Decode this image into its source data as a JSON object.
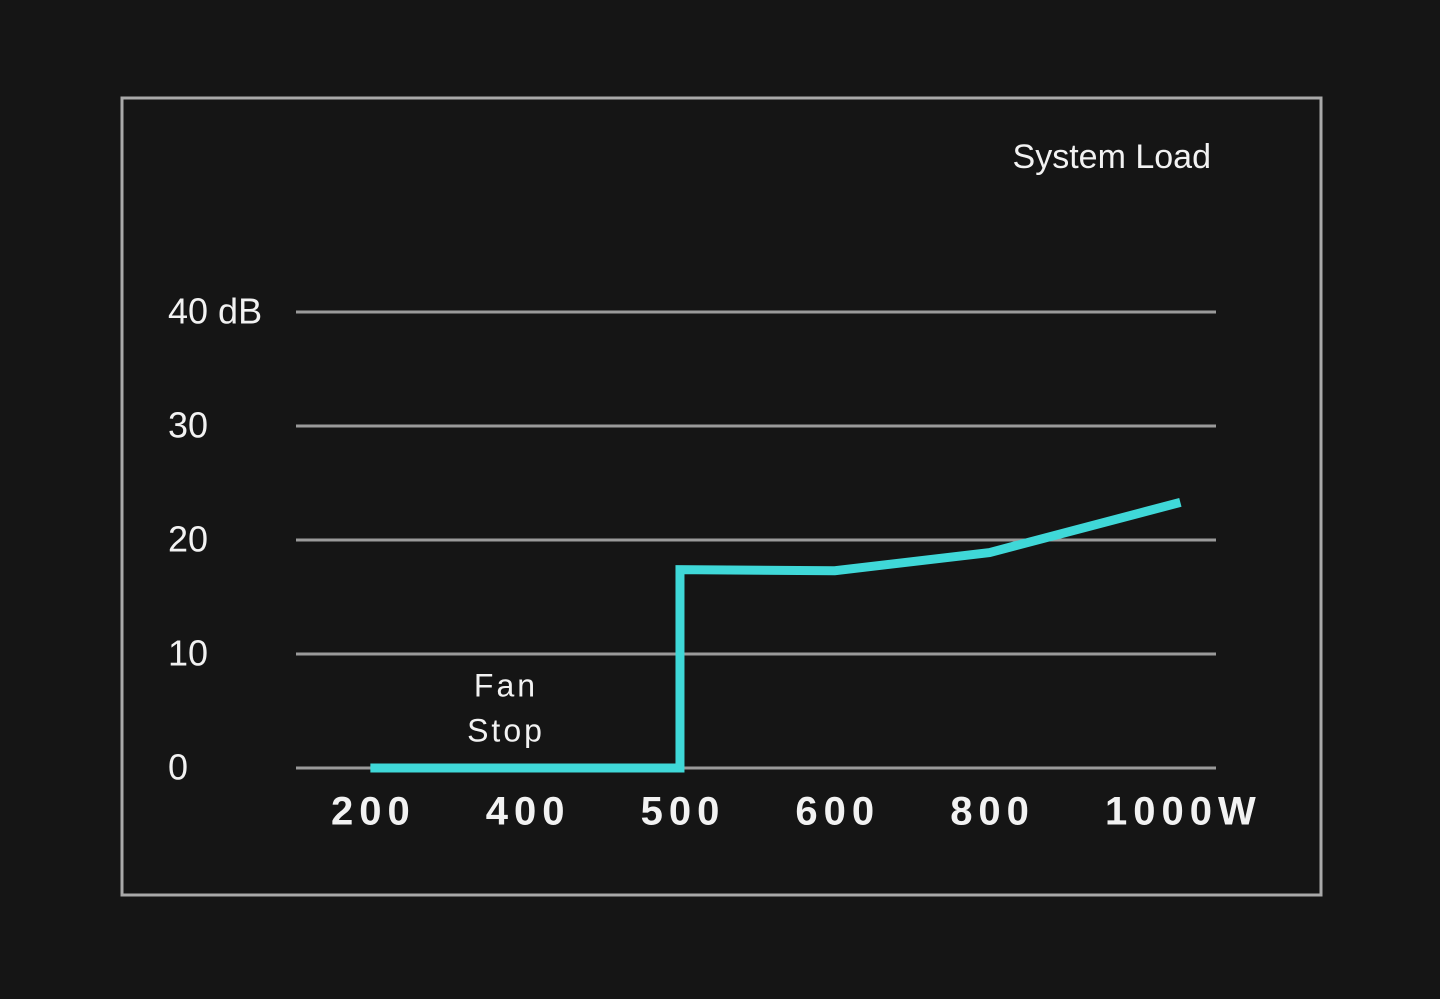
{
  "chart_data": {
    "type": "line",
    "title": "System Load",
    "categories": [
      "200",
      "400",
      "500",
      "600",
      "800",
      "1000W"
    ],
    "series": [
      {
        "values": [
          0,
          0,
          17.4,
          17.3,
          18.9,
          23.3
        ],
        "color": "#3fd8d8"
      }
    ],
    "ylim": [
      0,
      40
    ],
    "yticks": [
      0,
      10,
      20,
      30,
      {
        "value": 40,
        "label": "40 dB"
      }
    ],
    "grid": true,
    "step_into": "500",
    "annotation": [
      "Fan",
      "Stop"
    ]
  }
}
